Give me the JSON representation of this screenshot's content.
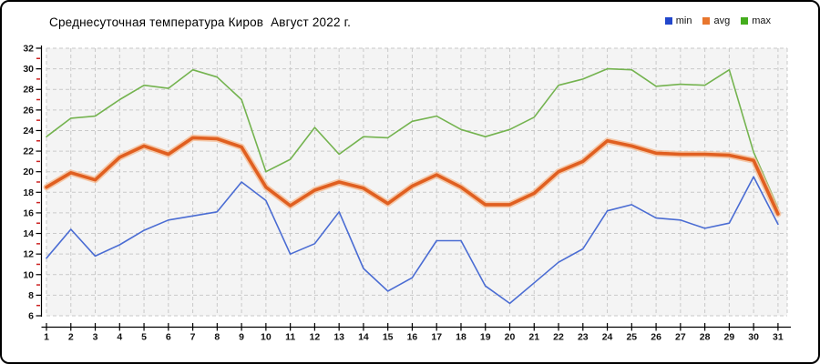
{
  "header": {
    "title": "Среднесуточная температура Киров  Август 2022 г."
  },
  "chart_data": {
    "type": "line",
    "title": "Среднесуточная температура Киров  Август 2022 г.",
    "xlabel": "",
    "ylabel": "",
    "x": [
      1,
      2,
      3,
      4,
      5,
      6,
      7,
      8,
      9,
      10,
      11,
      12,
      13,
      14,
      15,
      16,
      17,
      18,
      19,
      20,
      21,
      22,
      23,
      24,
      25,
      26,
      27,
      28,
      29,
      30,
      31
    ],
    "ylim": [
      6,
      32
    ],
    "ytick_step": 2,
    "grid": true,
    "legend_position": "top-right",
    "panel_bg": "#f4f4f4",
    "grid_color": "#c9c9c9",
    "axis_color": "#000000",
    "minor_tick_color": "#cc2222",
    "series": [
      {
        "name": "min",
        "color": "#2247cc",
        "line_color": "#4a6cd3",
        "values": [
          11.6,
          14.4,
          11.8,
          12.9,
          14.3,
          15.3,
          15.7,
          16.1,
          19.0,
          17.2,
          12.0,
          13.0,
          16.1,
          10.6,
          8.4,
          9.7,
          13.3,
          13.3,
          8.9,
          7.2,
          9.2,
          11.2,
          12.5,
          16.2,
          16.8,
          15.5,
          15.3,
          14.5,
          15.0,
          19.5,
          14.9
        ]
      },
      {
        "name": "avg",
        "color": "#e8762d",
        "line_color": "#e05f20",
        "halo_color": "#f5bd95",
        "values": [
          18.5,
          19.9,
          19.2,
          21.4,
          22.5,
          21.7,
          23.3,
          23.2,
          22.4,
          18.5,
          16.7,
          18.2,
          19.0,
          18.4,
          16.9,
          18.6,
          19.7,
          18.5,
          16.8,
          16.8,
          17.9,
          20.0,
          21.0,
          23.0,
          22.5,
          21.8,
          21.7,
          21.7,
          21.6,
          21.1,
          15.9
        ]
      },
      {
        "name": "max",
        "color": "#44ad1d",
        "line_color": "#74b34f",
        "values": [
          23.4,
          25.2,
          25.4,
          27.0,
          28.4,
          28.1,
          29.9,
          29.2,
          27.0,
          20.0,
          21.2,
          24.3,
          21.7,
          23.4,
          23.3,
          24.9,
          25.4,
          24.1,
          23.4,
          24.1,
          25.3,
          28.4,
          29.0,
          30.0,
          29.9,
          28.3,
          28.5,
          28.4,
          29.9,
          21.9,
          16.5
        ]
      }
    ]
  }
}
